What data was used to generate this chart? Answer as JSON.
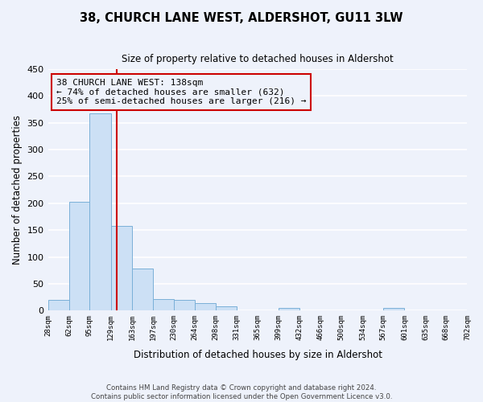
{
  "title": "38, CHURCH LANE WEST, ALDERSHOT, GU11 3LW",
  "subtitle": "Size of property relative to detached houses in Aldershot",
  "xlabel": "Distribution of detached houses by size in Aldershot",
  "ylabel": "Number of detached properties",
  "bin_edges": [
    28,
    62,
    95,
    129,
    163,
    197,
    230,
    264,
    298,
    331,
    365,
    399,
    432,
    466,
    500,
    534,
    567,
    601,
    635,
    668,
    702
  ],
  "bin_labels": [
    "28sqm",
    "62sqm",
    "95sqm",
    "129sqm",
    "163sqm",
    "197sqm",
    "230sqm",
    "264sqm",
    "298sqm",
    "331sqm",
    "365sqm",
    "399sqm",
    "432sqm",
    "466sqm",
    "500sqm",
    "534sqm",
    "567sqm",
    "601sqm",
    "635sqm",
    "668sqm",
    "702sqm"
  ],
  "counts": [
    20,
    202,
    368,
    157,
    79,
    22,
    20,
    14,
    8,
    0,
    0,
    5,
    0,
    0,
    0,
    0,
    5,
    0,
    0,
    0
  ],
  "bar_color": "#cce0f5",
  "bar_edge_color": "#7ab0d8",
  "vline_x": 138,
  "vline_color": "#cc0000",
  "annotation_line1": "38 CHURCH LANE WEST: 138sqm",
  "annotation_line2": "← 74% of detached houses are smaller (632)",
  "annotation_line3": "25% of semi-detached houses are larger (216) →",
  "ylim": [
    0,
    450
  ],
  "yticks": [
    0,
    50,
    100,
    150,
    200,
    250,
    300,
    350,
    400,
    450
  ],
  "bg_color": "#eef2fb",
  "plot_bg_color": "#eef2fb",
  "grid_color": "#ffffff",
  "footer_line1": "Contains HM Land Registry data © Crown copyright and database right 2024.",
  "footer_line2": "Contains public sector information licensed under the Open Government Licence v3.0."
}
